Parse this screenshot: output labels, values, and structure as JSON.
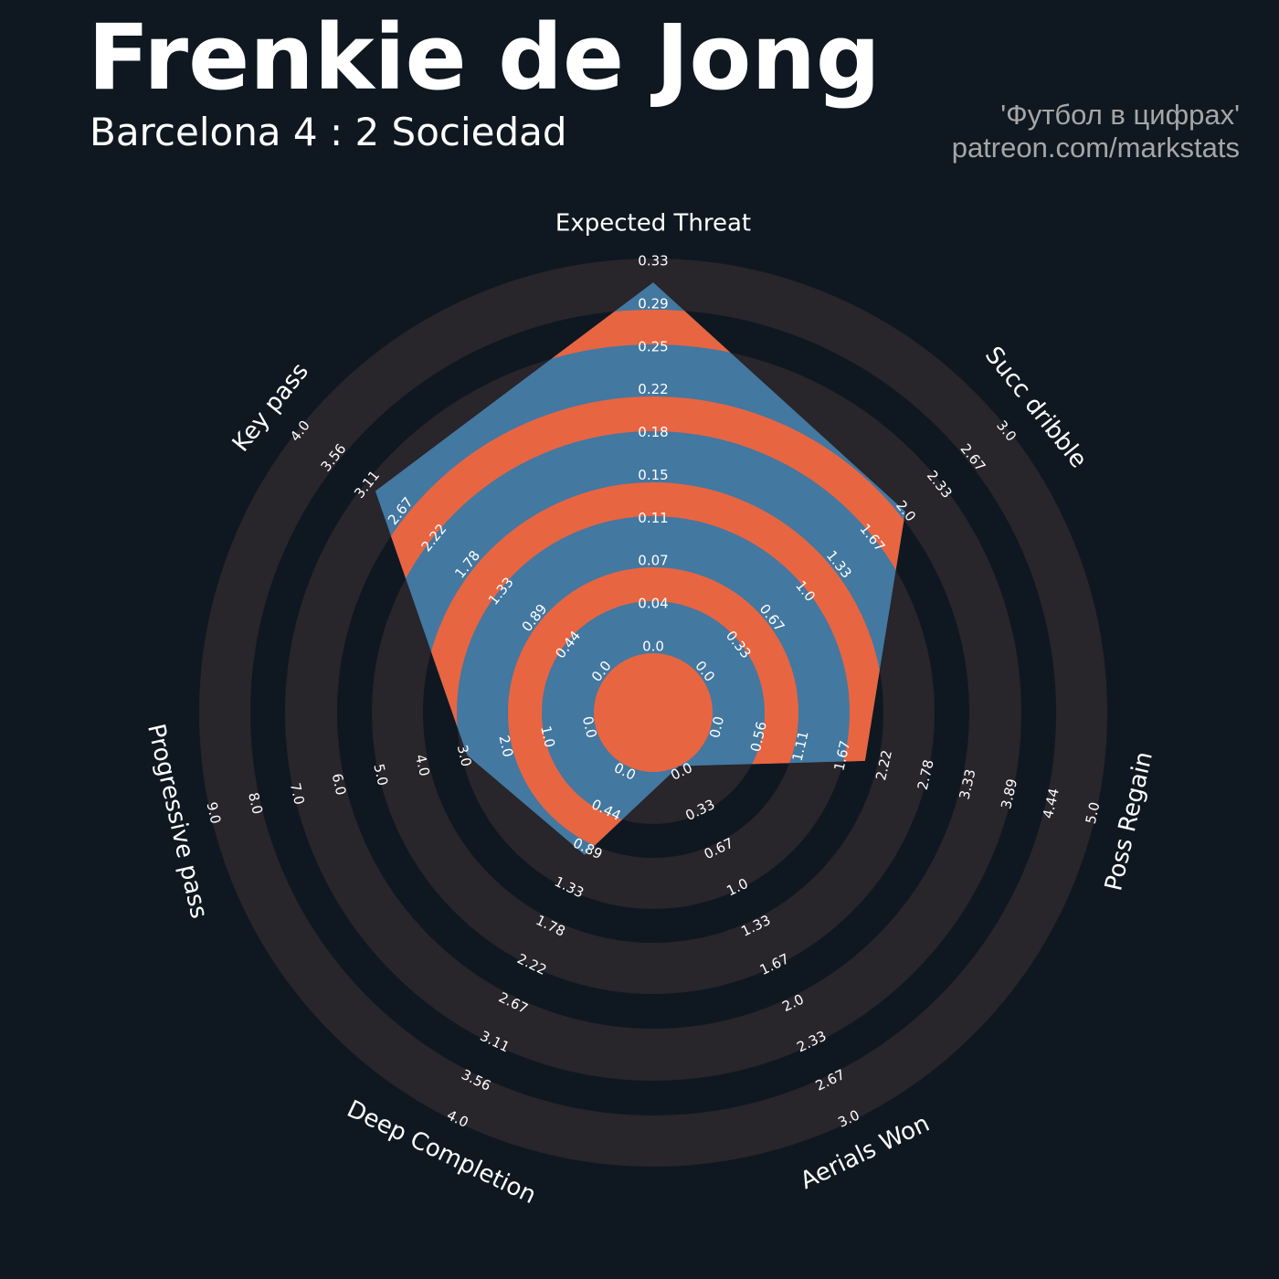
{
  "header": {
    "title": "Frenkie de Jong",
    "subtitle": "Barcelona 4 : 2 Sociedad",
    "credit_line1": "'Футбол в цифрах'",
    "credit_line2": "patreon.com/markstats"
  },
  "colors": {
    "background": "#0f1820",
    "ring": "#28252b",
    "polygon": "#4378a0",
    "polygon_alt": "#e86542",
    "text": "#ffffff",
    "credit": "#a6a6a6"
  },
  "chart_data": {
    "type": "radar",
    "params": [
      {
        "name": "Expected Threat",
        "value": 0.31,
        "min": 0.0,
        "max": 0.33,
        "ticks": [
          "0.0",
          "0.04",
          "0.07",
          "0.11",
          "0.15",
          "0.18",
          "0.22",
          "0.25",
          "0.29",
          "0.33"
        ]
      },
      {
        "name": "Succ dribble",
        "value": 2,
        "min": 0.0,
        "max": 3.0,
        "ticks": [
          "0.0",
          "0.33",
          "0.67",
          "1.0",
          "1.33",
          "1.67",
          "2.0",
          "2.33",
          "2.67",
          "3.0"
        ]
      },
      {
        "name": "Poss Regain",
        "value": 2,
        "min": 0.0,
        "max": 5.0,
        "ticks": [
          "0.0",
          "0.56",
          "1.11",
          "1.67",
          "2.22",
          "2.78",
          "3.33",
          "3.89",
          "4.44",
          "5.0"
        ]
      },
      {
        "name": "Aerials Won",
        "value": 0,
        "min": 0.0,
        "max": 3.0,
        "ticks": [
          "0.0",
          "0.33",
          "0.67",
          "1.0",
          "1.33",
          "1.67",
          "2.0",
          "2.33",
          "2.67",
          "3.0"
        ]
      },
      {
        "name": "Deep Completion",
        "value": 1,
        "min": 0.0,
        "max": 4.0,
        "ticks": [
          "0.0",
          "0.44",
          "0.89",
          "1.33",
          "1.78",
          "2.22",
          "2.67",
          "3.11",
          "3.56",
          "4.0"
        ]
      },
      {
        "name": "Progressive pass",
        "value": 3,
        "min": 0.0,
        "max": 9.0,
        "ticks": [
          "0.0",
          "1.0",
          "2.0",
          "3.0",
          "4.0",
          "5.0",
          "6.0",
          "7.0",
          "8.0",
          "9.0"
        ]
      },
      {
        "name": "Key pass",
        "value": 3,
        "min": 0.0,
        "max": 4.0,
        "ticks": [
          "0.0",
          "0.44",
          "0.89",
          "1.33",
          "1.78",
          "2.22",
          "2.67",
          "3.11",
          "3.56",
          "4.0"
        ]
      }
    ]
  }
}
